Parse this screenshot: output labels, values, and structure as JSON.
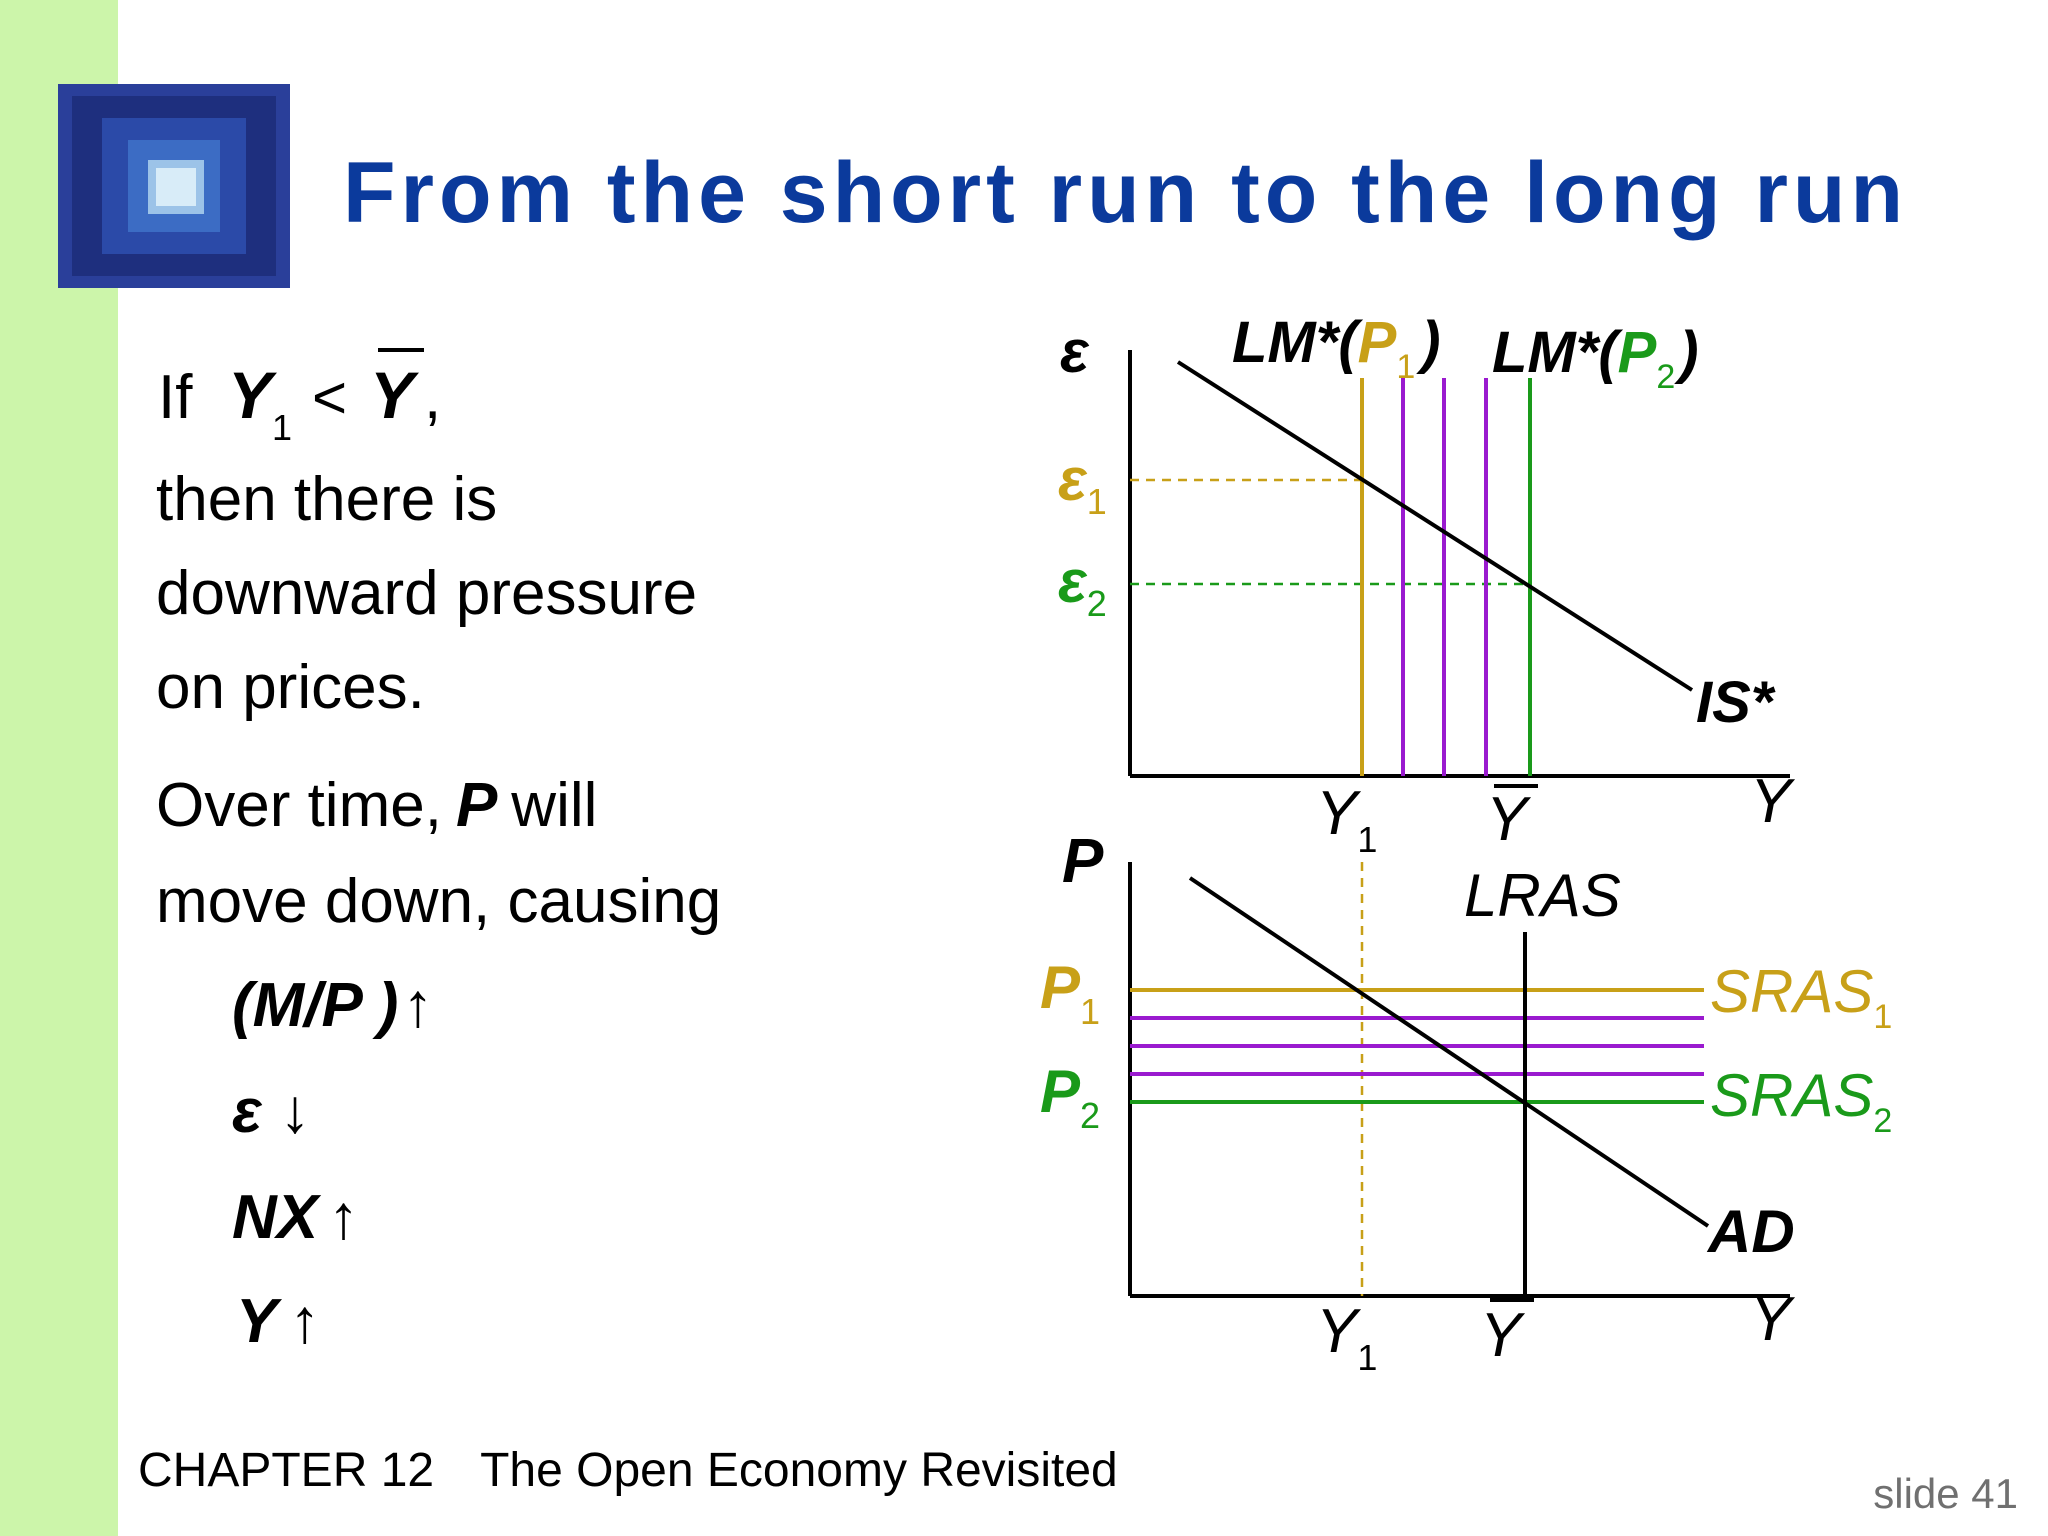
{
  "title": "From the short run to the long run",
  "footer": {
    "chapter": "CHAPTER 12",
    "chapter_title": "The Open Economy Revisited"
  },
  "slide_label": "slide 41",
  "body": {
    "if_word": "If",
    "cond_y": "Y",
    "cond_sub": "1",
    "cond_lt": "<",
    "cond_ybar": "Y",
    "cond_comma": ",",
    "line2": "then there is",
    "line3": "downward pressure",
    "line4": "on prices.",
    "para2_1_a": "Over time,",
    "para2_1_p": "P",
    "para2_1_b": "will",
    "para2_2": "move down, causing",
    "effects": [
      {
        "label": "(M/P )",
        "arrow": "↑"
      },
      {
        "label": "ε",
        "arrow": "↓"
      },
      {
        "label": "NX",
        "arrow": "↑"
      },
      {
        "label": "Y",
        "arrow": "↑"
      }
    ]
  },
  "colors": {
    "gold": "#c8a018",
    "green": "#1a9a1a",
    "purple": "#9a1acf",
    "blue_title": "#0b3a9c"
  },
  "chart_data": [
    {
      "type": "line",
      "name": "IS*-LM* diagram",
      "y_axis_label": "ε",
      "x_axis_label": "Y",
      "x_ticks": [
        {
          "base": "Y",
          "sub": "1"
        },
        {
          "base": "Y",
          "bar": true
        }
      ],
      "y_ticks": [
        {
          "base": "ε",
          "sub": "1",
          "color": "gold"
        },
        {
          "base": "ε",
          "sub": "2",
          "color": "green"
        }
      ],
      "curves": [
        {
          "label": "IS*",
          "kind": "downward-sloping"
        },
        {
          "label_base": "LM*(",
          "label_var": "P",
          "label_sub": "1",
          "label_close": ")",
          "kind": "vertical",
          "at": "Y1",
          "color": "gold"
        },
        {
          "label_base": "LM*(",
          "label_var": "P",
          "label_sub": "2",
          "label_close": ")",
          "kind": "vertical",
          "at": "Ybar",
          "color": "green"
        },
        {
          "kind": "vertical",
          "count": 3,
          "color": "purple",
          "note_visible": false
        }
      ]
    },
    {
      "type": "line",
      "name": "AD-AS diagram",
      "y_axis_label": "P",
      "x_axis_label": "Y",
      "x_ticks": [
        {
          "base": "Y",
          "sub": "1"
        },
        {
          "base": "Y",
          "bar": true
        }
      ],
      "y_ticks": [
        {
          "base": "P",
          "sub": "1",
          "color": "gold"
        },
        {
          "base": "P",
          "sub": "2",
          "color": "green"
        }
      ],
      "curves": [
        {
          "label": "AD",
          "kind": "downward-sloping"
        },
        {
          "label": "LRAS",
          "kind": "vertical",
          "at": "Ybar"
        },
        {
          "label_base": "SRAS",
          "label_sub": "1",
          "kind": "horizontal",
          "at": "P1",
          "color": "gold"
        },
        {
          "label_base": "SRAS",
          "label_sub": "2",
          "kind": "horizontal",
          "at": "P2",
          "color": "green"
        },
        {
          "kind": "horizontal",
          "count": 3,
          "color": "purple"
        }
      ]
    }
  ]
}
